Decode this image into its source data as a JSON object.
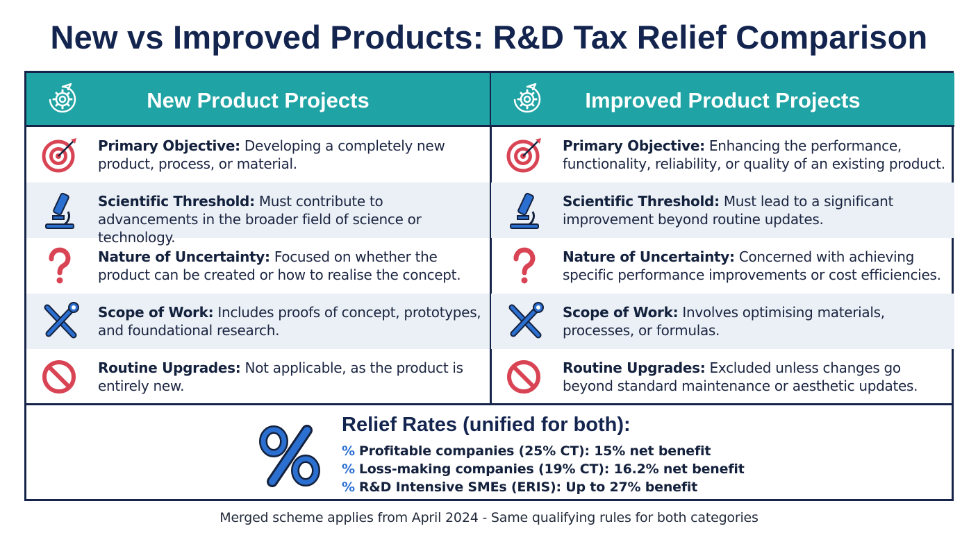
{
  "title": "New vs Improved Products: R&D Tax Relief Comparison",
  "colors": {
    "header_teal": "#1fa3a4",
    "navy": "#13244f",
    "red_icon": "#d94455",
    "blue_icon": "#2b6fd0",
    "alt_row": "#eaf0f5"
  },
  "columns": [
    {
      "heading": "New Product Projects",
      "icon": "gear-cycle-icon",
      "rows": [
        {
          "icon": "target-icon",
          "label": "Primary Objective:",
          "text": "Developing a completely new product, process, or material."
        },
        {
          "icon": "microscope-icon",
          "label": "Scientific Threshold:",
          "text": "Must contribute to advancements in the broader field of science or technology."
        },
        {
          "icon": "question-icon",
          "label": "Nature of Uncertainty:",
          "text": "Focused on whether the product can be created or how to realise the concept."
        },
        {
          "icon": "tools-icon",
          "label": "Scope of Work:",
          "text": "Includes proofs of concept, prototypes, and foundational research."
        },
        {
          "icon": "prohibited-icon",
          "label": "Routine Upgrades:",
          "text": "Not applicable, as the product is entirely new."
        }
      ]
    },
    {
      "heading": "Improved Product Projects",
      "icon": "gear-cycle-icon",
      "rows": [
        {
          "icon": "target-icon",
          "label": "Primary Objective:",
          "text": "Enhancing the performance, functionality, reliability, or quality of an existing product."
        },
        {
          "icon": "microscope-icon",
          "label": "Scientific Threshold:",
          "text": "Must lead to a significant improvement beyond routine updates."
        },
        {
          "icon": "question-icon",
          "label": "Nature of Uncertainty:",
          "text": "Concerned with achieving specific performance improvements or cost efficiencies."
        },
        {
          "icon": "tools-icon",
          "label": "Scope of Work:",
          "text": "Involves optimising materials, processes, or formulas."
        },
        {
          "icon": "prohibited-icon",
          "label": "Routine Upgrades:",
          "text": "Excluded unless changes go beyond standard maintenance or aesthetic updates."
        }
      ]
    }
  ],
  "relief": {
    "title": "Relief Rates (unified for both):",
    "icon": "percent-icon",
    "bullet": "%",
    "items": [
      "Profitable companies (25% CT): 15% net benefit",
      "Loss-making companies (19% CT): 16.2% net benefit",
      "R&D Intensive SMEs (ERIS): Up to 27% benefit"
    ]
  },
  "footer": "Merged scheme applies from April 2024 - Same qualifying rules for both categories"
}
